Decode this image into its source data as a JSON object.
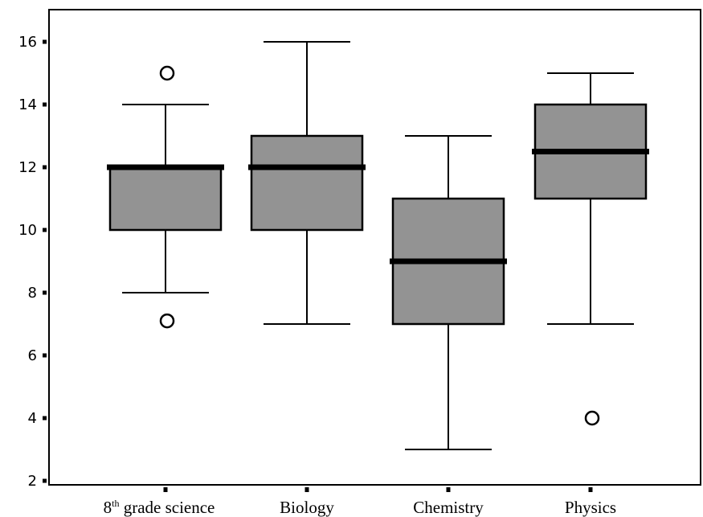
{
  "chart_data": {
    "type": "boxplot",
    "title": "",
    "xlabel": "",
    "ylabel": "",
    "ylim": [
      2,
      17
    ],
    "yticks": [
      2,
      4,
      6,
      8,
      10,
      12,
      14,
      16
    ],
    "grid": false,
    "legend": "none",
    "box_color": "#939393",
    "line_color": "#000000",
    "categories": [
      {
        "base": "8",
        "sup": "th",
        "rest": " grade science"
      },
      {
        "base": "Biology",
        "sup": "",
        "rest": ""
      },
      {
        "base": "Chemistry",
        "sup": "",
        "rest": ""
      },
      {
        "base": "Physics",
        "sup": "",
        "rest": ""
      }
    ],
    "boxes": [
      {
        "whisker_low": 8,
        "q1": 10,
        "median": 12,
        "q3": 12,
        "whisker_high": 14,
        "outliers": [
          15,
          7.1
        ]
      },
      {
        "whisker_low": 7,
        "q1": 10,
        "median": 12,
        "q3": 13,
        "whisker_high": 16,
        "outliers": []
      },
      {
        "whisker_low": 3,
        "q1": 7,
        "median": 9,
        "q3": 11,
        "whisker_high": 13,
        "outliers": []
      },
      {
        "whisker_low": 7,
        "q1": 11,
        "median": 12.5,
        "q3": 14,
        "whisker_high": 15,
        "outliers": [
          4
        ]
      }
    ]
  }
}
